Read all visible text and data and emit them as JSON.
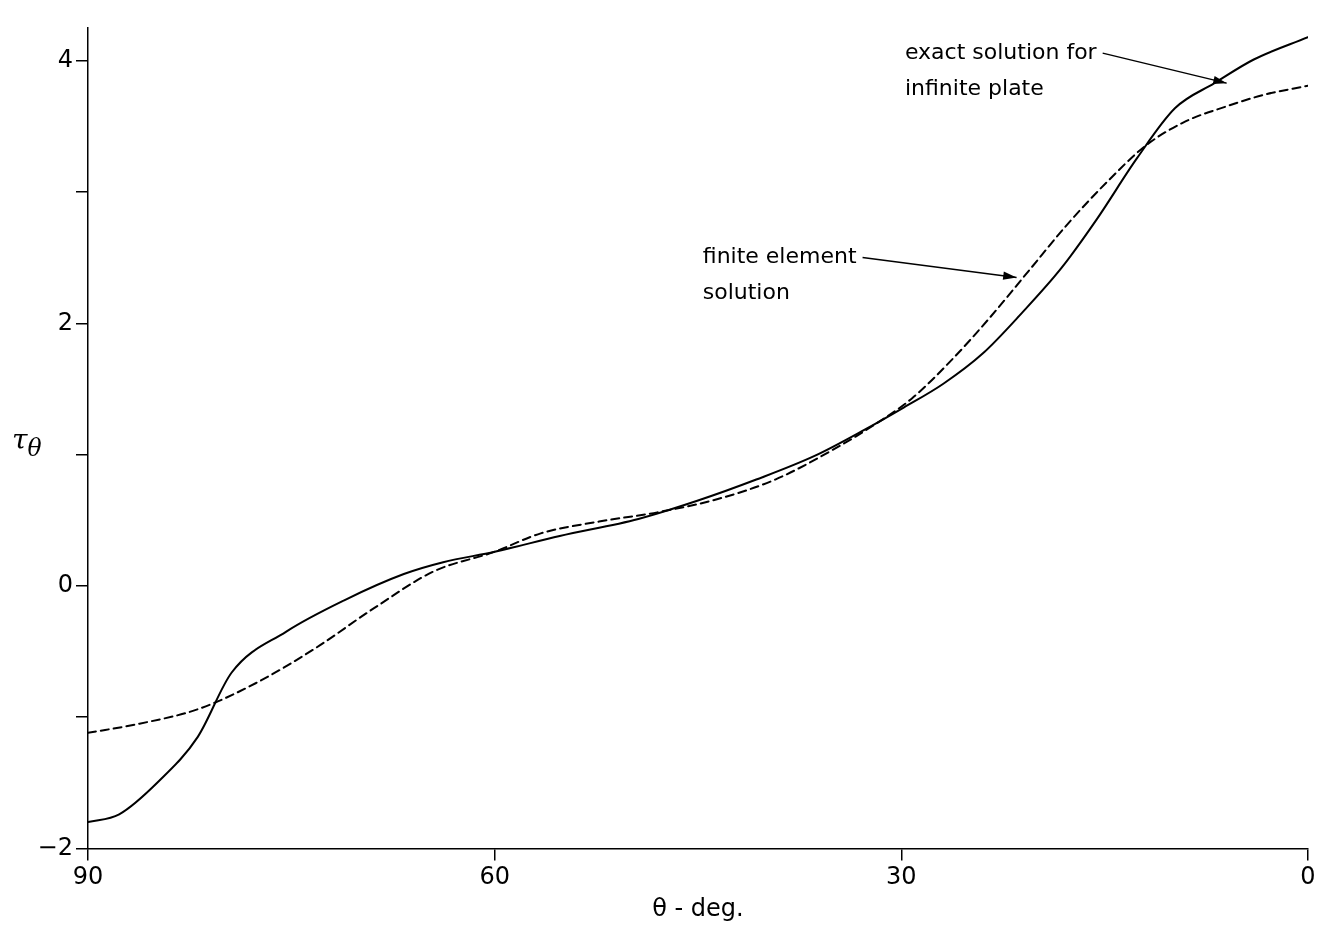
{
  "chart_data": {
    "type": "line",
    "xlabel": "θ - deg.",
    "ylabel": "τ$_{θ}$",
    "xlim": [
      90,
      0
    ],
    "xticks": [
      90,
      60,
      30,
      0
    ],
    "ylim": [
      -2,
      4.25
    ],
    "yticks": [
      -2,
      {
        "value": -1,
        "label": null
      },
      0,
      {
        "value": 1,
        "label": null
      },
      2,
      {
        "value": 3,
        "label": null
      },
      4
    ],
    "grid": false,
    "legend": false,
    "marker": "none",
    "series": [
      {
        "color": "#000000",
        "line_style": "solid",
        "x": [
          90,
          87.7,
          84.8,
          81.9,
          79.4,
          75.4,
          71.1,
          66.7,
          63.8,
          60,
          55.2,
          49.4,
          45,
          40.7,
          36.4,
          32.7,
          29.8,
          26.9,
          24,
          21.1,
          18.2,
          15.6,
          12.6,
          9.8,
          6.9,
          4,
          0
        ],
        "values": [
          -1.8,
          -1.74,
          -1.49,
          -1.15,
          -0.66,
          -0.35,
          -0.11,
          0.09,
          0.18,
          0.26,
          0.38,
          0.51,
          0.65,
          0.81,
          0.99,
          1.19,
          1.36,
          1.54,
          1.77,
          2.08,
          2.42,
          2.79,
          3.26,
          3.64,
          3.83,
          4.01,
          4.18
        ]
      },
      {
        "color": "#000000",
        "line_style": "dashed",
        "x": [
          90,
          86.2,
          81.9,
          77.6,
          73.3,
          68.9,
          64.5,
          60,
          56.6,
          52.3,
          48,
          43.6,
          39.3,
          35,
          32.1,
          29.2,
          26.3,
          23.5,
          20.6,
          17.7,
          14.8,
          11.9,
          9,
          6.1,
          3.3,
          0
        ],
        "values": [
          -1.12,
          -1.05,
          -0.94,
          -0.74,
          -0.48,
          -0.17,
          0.11,
          0.26,
          0.4,
          0.49,
          0.56,
          0.66,
          0.81,
          1.04,
          1.22,
          1.43,
          1.72,
          2.04,
          2.4,
          2.76,
          3.08,
          3.36,
          3.54,
          3.65,
          3.74,
          3.81
        ]
      }
    ],
    "annotations": [
      {
        "text": "exact solution for infinite plate",
        "x": 6,
        "y": 3.83
      },
      {
        "text": "finite element solution",
        "x": 21.5,
        "y": 2.35
      }
    ]
  }
}
